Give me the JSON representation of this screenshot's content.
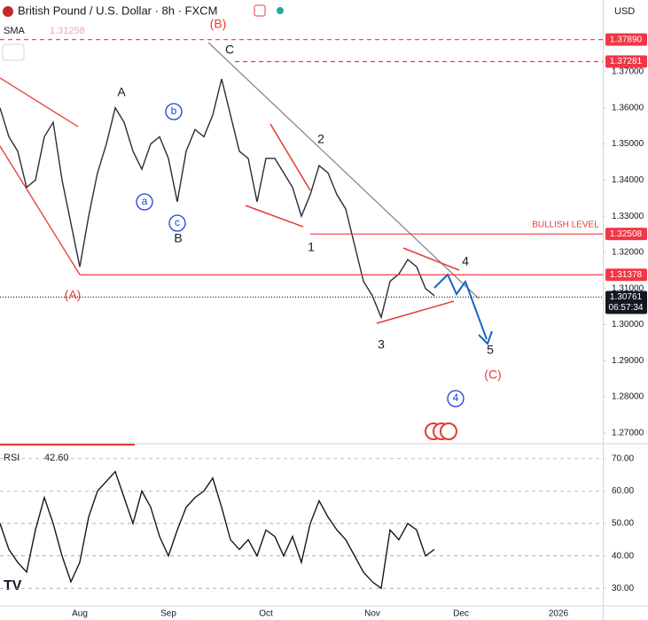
{
  "chart_data": [
    {
      "type": "line",
      "title": "British Pound / U.S. Dollar · 8h · FXCM",
      "indicator": "SMA",
      "indicator_value": "1.31258",
      "currency": "USD",
      "color": "#2a2e39",
      "categories": [
        null,
        null,
        null,
        null,
        null,
        null,
        null,
        null,
        null,
        "Aug",
        null,
        null,
        null,
        null,
        null,
        null,
        null,
        null,
        null,
        "Sep",
        null,
        null,
        null,
        null,
        null,
        null,
        null,
        null,
        null,
        null,
        "Oct",
        null,
        null,
        null,
        null,
        null,
        null,
        null,
        null,
        null,
        null,
        null,
        "Nov",
        null,
        null,
        null,
        null,
        null,
        null,
        null,
        null,
        null,
        "Dec",
        null,
        null,
        null,
        null,
        null,
        null,
        null,
        null,
        null,
        null,
        "2026",
        null,
        null,
        null,
        null
      ],
      "values": [
        1.36,
        1.352,
        1.348,
        1.338,
        1.34,
        1.352,
        1.356,
        1.34,
        1.328,
        1.316,
        1.33,
        1.342,
        1.35,
        1.36,
        1.356,
        1.348,
        1.343,
        1.35,
        1.352,
        1.346,
        1.334,
        1.348,
        1.354,
        1.352,
        1.358,
        1.368,
        1.358,
        1.348,
        1.346,
        1.334,
        1.346,
        1.346,
        1.342,
        1.338,
        1.33,
        1.336,
        1.344,
        1.342,
        1.336,
        1.332,
        1.322,
        1.312,
        1.308,
        1.302,
        1.312,
        1.314,
        1.318,
        1.316,
        1.31,
        1.308,
        null,
        null,
        null,
        null,
        null,
        null,
        null,
        null,
        null,
        null,
        null,
        null,
        null,
        null,
        null,
        null,
        null,
        null
      ],
      "ylim": [
        1.268,
        1.38985
      ],
      "yticks": [
        {
          "value": 1.27,
          "label": "1.27000"
        },
        {
          "value": 1.28,
          "label": "1.28000"
        },
        {
          "value": 1.29,
          "label": "1.29000"
        },
        {
          "value": 1.3,
          "label": "1.30000"
        },
        {
          "value": 1.31,
          "label": "1.31000"
        },
        {
          "value": 1.32,
          "label": "1.32000"
        },
        {
          "value": 1.33,
          "label": "1.33000"
        },
        {
          "value": 1.34,
          "label": "1.34000"
        },
        {
          "value": 1.35,
          "label": "1.35000"
        },
        {
          "value": 1.36,
          "label": "1.36000"
        },
        {
          "value": 1.37,
          "label": "1.37000"
        }
      ],
      "levels": [
        {
          "value": 1.3789,
          "label": "1.37890",
          "color": "#f23645"
        },
        {
          "value": 1.37281,
          "label": "1.37281",
          "color": "#f23645"
        },
        {
          "value": 1.32508,
          "label": "1.32508",
          "color": "#f23645"
        },
        {
          "value": 1.31378,
          "label": "1.31378",
          "color": "#f23645"
        },
        {
          "value": 1.30761,
          "label": "1.30761",
          "color": "#131722",
          "countdown": "06:57:34"
        }
      ],
      "annotations": [
        {
          "text": "(B)",
          "color": "#e53935"
        },
        {
          "text": "C",
          "color": "#131722"
        },
        {
          "text": "A",
          "color": "#131722"
        },
        {
          "text": "b",
          "color": "#1e3fd8",
          "circled": true
        },
        {
          "text": "a",
          "color": "#1e3fd8",
          "circled": true
        },
        {
          "text": "c",
          "color": "#1e3fd8",
          "circled": true
        },
        {
          "text": "B",
          "color": "#131722"
        },
        {
          "text": "2",
          "color": "#131722"
        },
        {
          "text": "1",
          "color": "#131722"
        },
        {
          "text": "(A)",
          "color": "#e53935"
        },
        {
          "text": "3",
          "color": "#131722"
        },
        {
          "text": "4",
          "color": "#131722"
        },
        {
          "text": "5",
          "color": "#131722"
        },
        {
          "text": "(C)",
          "color": "#e53935"
        },
        {
          "text": "4",
          "color": "#1e3fd8",
          "circled": true
        },
        {
          "text": "BULLISH LEVEL",
          "color": "#e53935"
        }
      ]
    },
    {
      "type": "line",
      "title": "RSI",
      "current_label": "42.60",
      "color": "#131722",
      "grid": true,
      "values": [
        50,
        42,
        38,
        35,
        48,
        58,
        50,
        40,
        32,
        38,
        52,
        60,
        63,
        66,
        58,
        50,
        60,
        55,
        46,
        40,
        48,
        55,
        58,
        60,
        64,
        55,
        45,
        42,
        45,
        40,
        48,
        46,
        40,
        46,
        38,
        50,
        57,
        52,
        48,
        45,
        40,
        35,
        32,
        30,
        48,
        45,
        50,
        48,
        40,
        42,
        null,
        null,
        null,
        null,
        null,
        null,
        null,
        null,
        null,
        null,
        null,
        null,
        null,
        null,
        null,
        null,
        null,
        null
      ],
      "ylim": [
        24.6,
        73.5
      ],
      "yticks": [
        {
          "value": 30,
          "label": "30.00"
        },
        {
          "value": 40,
          "label": "40.00"
        },
        {
          "value": 50,
          "label": "50.00"
        },
        {
          "value": 60,
          "label": "60.00"
        },
        {
          "value": 70,
          "label": "70.00"
        }
      ]
    }
  ]
}
